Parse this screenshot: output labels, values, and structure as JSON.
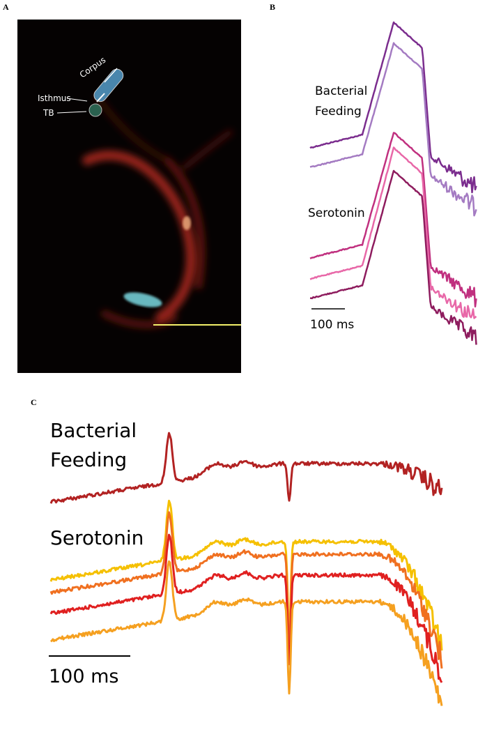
{
  "panels": [
    {
      "label": "A",
      "annotations": [
        "Corpus",
        "Isthmus",
        "TB"
      ]
    },
    {
      "label": "B",
      "condition_1": [
        "Bacterial",
        "Feeding"
      ],
      "condition_2": "Serotonin",
      "scale_bar": "100 ms"
    },
    {
      "label": "C",
      "condition_1": [
        "Bacterial",
        "Feeding"
      ],
      "condition_2": "Serotonin",
      "scale_bar": "100 ms"
    }
  ]
}
